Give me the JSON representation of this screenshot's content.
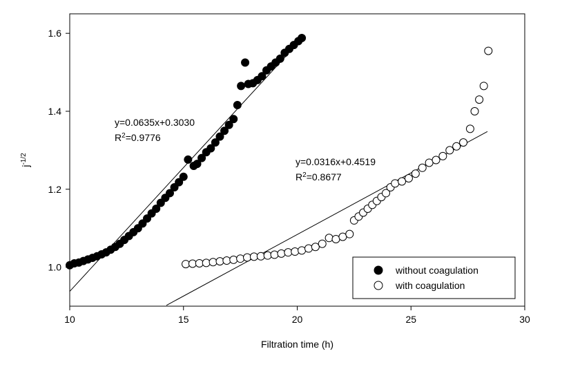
{
  "chart_data": {
    "type": "scatter",
    "x_label": "Filtration time (h)",
    "y_label": {
      "text": "j",
      "superscript": "-1/2"
    },
    "xlim": [
      10,
      30
    ],
    "xticks": [
      10,
      15,
      20,
      25,
      30
    ],
    "ylim": [
      0.9,
      1.65
    ],
    "yticks": [
      {
        "value": 1.0,
        "label": "1.0"
      },
      {
        "value": 1.2,
        "label": "1.2"
      },
      {
        "value": 1.4,
        "label": "1.4"
      },
      {
        "value": 1.6,
        "label": "1.6"
      }
    ],
    "legend": "lower right",
    "series": [
      {
        "name": "without coagulation",
        "color": "#000000",
        "fill": "#000000",
        "x": [
          10.0,
          10.2,
          10.4,
          10.6,
          10.8,
          11.0,
          11.2,
          11.4,
          11.6,
          11.8,
          12.0,
          12.2,
          12.4,
          12.6,
          12.8,
          13.0,
          13.2,
          13.4,
          13.6,
          13.8,
          14.0,
          14.2,
          14.4,
          14.6,
          14.8,
          15.0,
          15.2,
          15.45,
          15.6,
          15.8,
          16.0,
          16.2,
          16.4,
          16.6,
          16.8,
          17.0,
          17.2,
          17.37,
          17.53,
          17.71,
          17.85,
          18.05,
          18.25,
          18.45,
          18.65,
          18.85,
          19.05,
          19.25,
          19.45,
          19.65,
          19.85,
          20.05,
          20.2
        ],
        "values": [
          1.005,
          1.01,
          1.012,
          1.016,
          1.02,
          1.024,
          1.028,
          1.033,
          1.038,
          1.045,
          1.052,
          1.06,
          1.07,
          1.08,
          1.09,
          1.1,
          1.112,
          1.125,
          1.138,
          1.15,
          1.165,
          1.178,
          1.19,
          1.205,
          1.218,
          1.232,
          1.276,
          1.26,
          1.265,
          1.28,
          1.295,
          1.305,
          1.32,
          1.335,
          1.35,
          1.365,
          1.38,
          1.416,
          1.465,
          1.525,
          1.47,
          1.472,
          1.48,
          1.49,
          1.505,
          1.515,
          1.525,
          1.535,
          1.55,
          1.56,
          1.57,
          1.58,
          1.588
        ]
      },
      {
        "name": "with coagulation",
        "color": "#000000",
        "fill": "#ffffff",
        "x": [
          15.1,
          15.4,
          15.7,
          16.0,
          16.3,
          16.6,
          16.9,
          17.2,
          17.5,
          17.8,
          18.1,
          18.4,
          18.7,
          19.0,
          19.3,
          19.6,
          19.9,
          20.2,
          20.5,
          20.8,
          21.1,
          21.4,
          21.7,
          22.0,
          22.3,
          22.5,
          22.7,
          22.9,
          23.1,
          23.3,
          23.5,
          23.7,
          23.9,
          24.1,
          24.3,
          24.6,
          24.9,
          25.2,
          25.5,
          25.8,
          26.1,
          26.4,
          26.7,
          27.0,
          27.3,
          27.6,
          27.8,
          28.0,
          28.2,
          28.4
        ],
        "values": [
          1.008,
          1.009,
          1.01,
          1.011,
          1.013,
          1.015,
          1.017,
          1.019,
          1.022,
          1.025,
          1.027,
          1.028,
          1.03,
          1.032,
          1.035,
          1.038,
          1.04,
          1.043,
          1.048,
          1.052,
          1.06,
          1.075,
          1.072,
          1.078,
          1.085,
          1.12,
          1.13,
          1.14,
          1.15,
          1.16,
          1.17,
          1.18,
          1.19,
          1.205,
          1.215,
          1.22,
          1.228,
          1.24,
          1.255,
          1.268,
          1.275,
          1.285,
          1.3,
          1.31,
          1.32,
          1.355,
          1.4,
          1.43,
          1.465,
          1.555
        ]
      }
    ],
    "fits": [
      {
        "slope": 0.0635,
        "intercept": 0.303,
        "x_range": [
          10,
          19.5
        ],
        "equation": "y=0.0635x+0.3030",
        "r2": {
          "text": "R",
          "superscript": "2",
          "rest": "=0.9776"
        }
      },
      {
        "slope": 0.0316,
        "intercept": 0.4519,
        "x_range": [
          14.25,
          28.36
        ],
        "equation": "y=0.0316x+0.4519",
        "r2": {
          "text": "R",
          "superscript": "2",
          "rest": "=0.8677"
        }
      }
    ]
  }
}
